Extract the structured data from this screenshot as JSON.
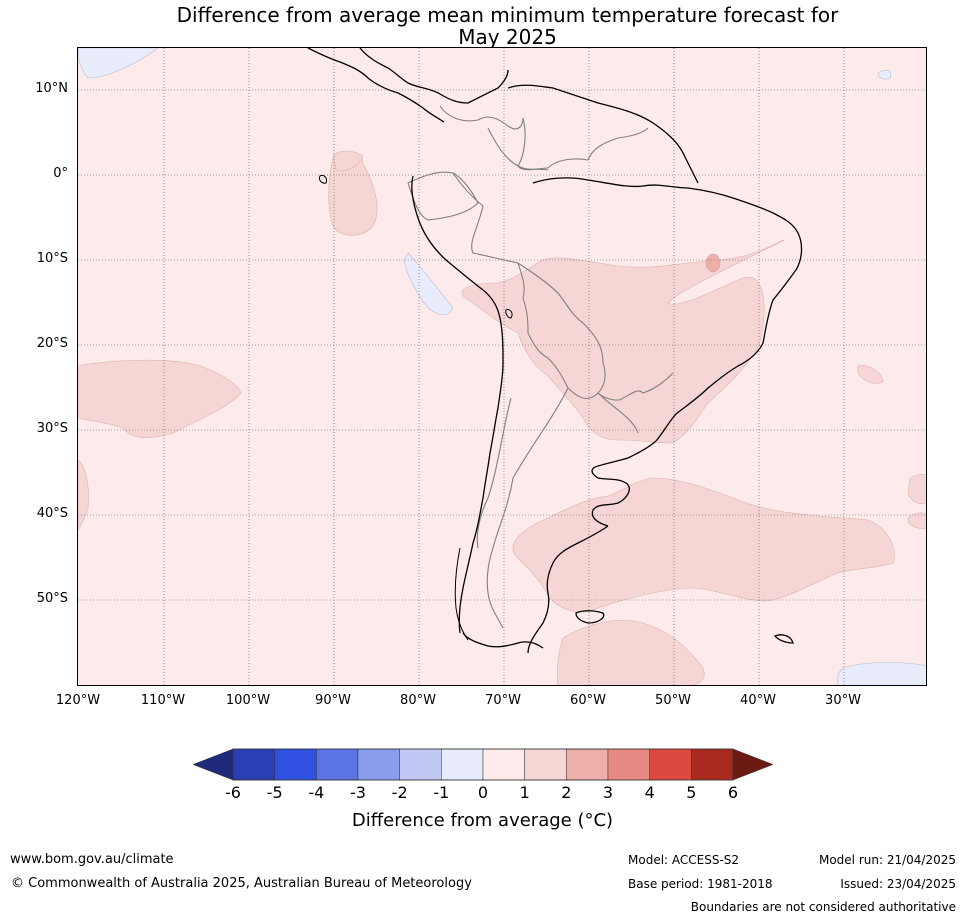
{
  "title_line1": "Difference from average mean minimum temperature forecast for",
  "title_line2": "May 2025",
  "lat_labels": [
    "10°N",
    "0°",
    "10°S",
    "20°S",
    "30°S",
    "40°S",
    "50°S"
  ],
  "lon_labels": [
    "120°W",
    "110°W",
    "100°W",
    "90°W",
    "80°W",
    "70°W",
    "60°W",
    "50°W",
    "40°W",
    "30°W"
  ],
  "colorbar": {
    "ticks": [
      "-6",
      "-5",
      "-4",
      "-3",
      "-2",
      "-1",
      "0",
      "1",
      "2",
      "3",
      "4",
      "5",
      "6"
    ],
    "colors": [
      "#1f2a7a",
      "#2b3fb5",
      "#2f50e0",
      "#5a74e6",
      "#8a9ded",
      "#c0c8f3",
      "#e9ecfb",
      "#fcebea",
      "#f6d6d4",
      "#eeaeaa",
      "#e88983",
      "#dc4a3f",
      "#ab2a20",
      "#6b1a14"
    ],
    "label": "Difference from average (°C)"
  },
  "map_colors": {
    "ocean_base": "#fcebea",
    "warm_1_2": "#f6d6d4",
    "warm_2_3": "#eeaeaa",
    "cool_m1_0": "#e9ecfb",
    "coast": "#000000",
    "border": "#808080"
  },
  "footer": {
    "website": "www.bom.gov.au/climate",
    "copyright": "© Commonwealth of Australia 2025, Australian Bureau of Meteorology",
    "model": "Model: ACCESS-S2",
    "base_period": "Base period: 1981-2018",
    "model_run": "Model run: 21/04/2025",
    "issued": "Issued: 23/04/2025",
    "disclaimer": "Boundaries are not considered authoritative"
  }
}
